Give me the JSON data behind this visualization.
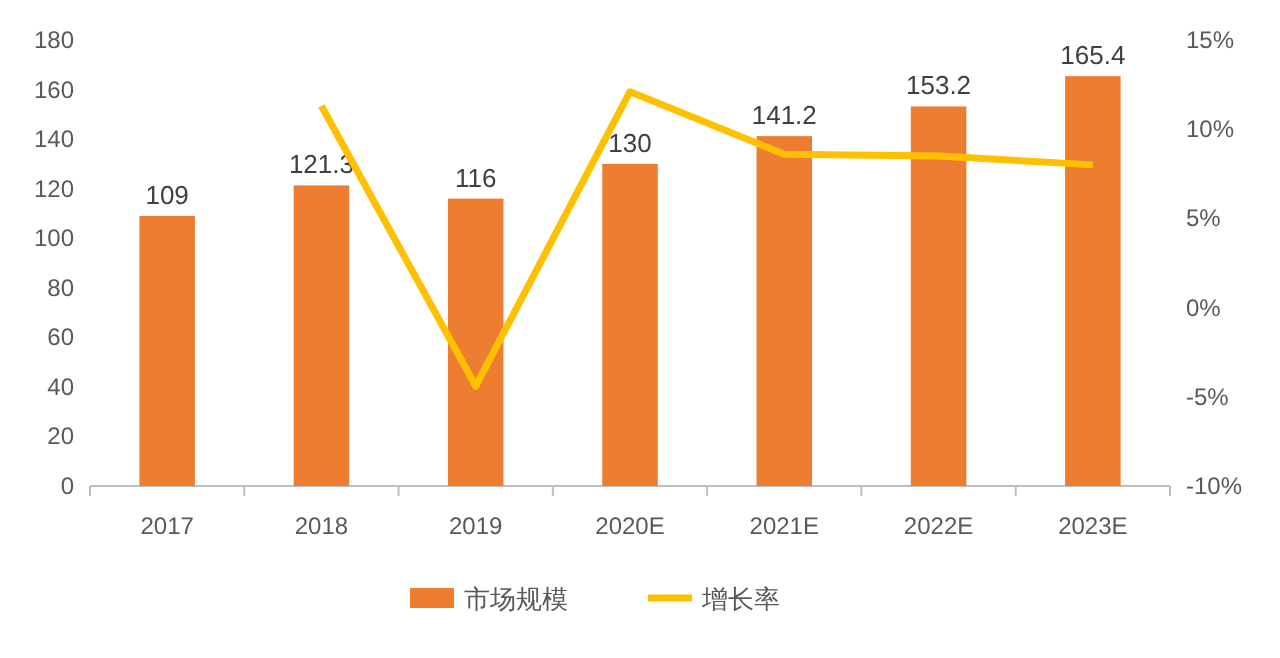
{
  "chart_data": {
    "type": "bar",
    "categories": [
      "2017",
      "2018",
      "2019",
      "2020E",
      "2021E",
      "2022E",
      "2023E"
    ],
    "series": [
      {
        "name": "市场规模",
        "color": "#ed7d31",
        "values": [
          109,
          121.3,
          116,
          130,
          141.2,
          153.2,
          165.4
        ],
        "value_labels": [
          "109",
          "121.3",
          "116",
          "130",
          "141.2",
          "153.2",
          "165.4"
        ]
      },
      {
        "name": "增长率",
        "type": "line",
        "axis": "y2",
        "color": "#ffc000",
        "values": [
          null,
          11.3,
          -4.4,
          12.1,
          8.6,
          8.5,
          8.0
        ]
      }
    ],
    "ylim": [
      0,
      180
    ],
    "yticks": [
      0,
      20,
      40,
      60,
      80,
      100,
      120,
      140,
      160,
      180
    ],
    "y2lim": [
      -10,
      15
    ],
    "y2ticks": [
      {
        "value": -10,
        "label": "-10%"
      },
      {
        "value": -5,
        "label": "-5%"
      },
      {
        "value": 0,
        "label": "0%"
      },
      {
        "value": 5,
        "label": "5%"
      },
      {
        "value": 10,
        "label": "10%"
      },
      {
        "value": 15,
        "label": "15%"
      }
    ],
    "legend": "bottom"
  }
}
